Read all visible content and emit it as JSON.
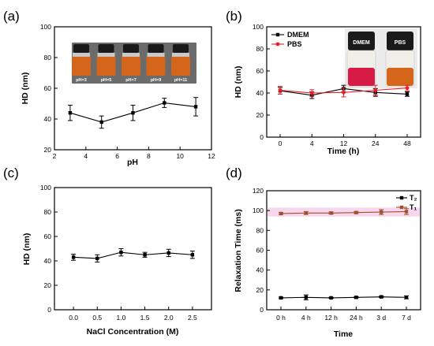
{
  "panels": {
    "a": "(a)",
    "b": "(b)",
    "c": "(c)",
    "d": "(d)"
  },
  "colors": {
    "black_series": "#000000",
    "pbs_series": "#e8202a",
    "t1_series": "#a0522d",
    "t1_band": "#f3c6e6",
    "vial_liquid": "#d4651a",
    "vial_cap": "#1a1a1a",
    "inset_bg": "#6b6b6b"
  },
  "chart_data": [
    {
      "id": "a",
      "type": "line",
      "xlabel": "pH",
      "ylabel": "HD (nm)",
      "xlim": [
        2,
        12
      ],
      "ylim": [
        20,
        100
      ],
      "xticks": [
        2,
        4,
        6,
        8,
        10,
        12
      ],
      "yticks": [
        20,
        40,
        60,
        80,
        100
      ],
      "series": [
        {
          "name": "",
          "x": [
            3,
            5,
            7,
            9,
            11
          ],
          "y": [
            44,
            38,
            44,
            50.5,
            48
          ],
          "err": [
            5,
            4,
            5,
            3,
            6
          ],
          "color": "#000000",
          "marker": "square"
        }
      ],
      "inset": {
        "vials": [
          "pH=3",
          "pH=5",
          "pH=7",
          "pH=9",
          "pH=11"
        ]
      }
    },
    {
      "id": "b",
      "type": "line",
      "xlabel": "Time (h)",
      "ylabel": "HD (nm)",
      "ylim": [
        0,
        100
      ],
      "categories": [
        "0",
        "4",
        "12",
        "24",
        "48"
      ],
      "yticks": [
        0,
        20,
        40,
        60,
        80,
        100
      ],
      "legend_position": "top-left",
      "series": [
        {
          "name": "DMEM",
          "y": [
            42,
            38,
            44,
            40.5,
            39
          ],
          "err": [
            3,
            3,
            3,
            3.5,
            2
          ],
          "color": "#000000",
          "marker": "square"
        },
        {
          "name": "PBS",
          "y": [
            42.5,
            40,
            40.5,
            42.5,
            44.5
          ],
          "err": [
            3.5,
            3,
            4,
            4.5,
            2.5
          ],
          "color": "#e8202a",
          "marker": "circle"
        }
      ],
      "inset": {
        "vials": [
          "DMEM",
          "PBS"
        ]
      }
    },
    {
      "id": "c",
      "type": "line",
      "xlabel": "NaCl Concentration (M)",
      "ylabel": "HD (nm)",
      "xlim": [
        -0.4,
        2.9
      ],
      "ylim": [
        0,
        100
      ],
      "xticks": [
        0.0,
        0.5,
        1.0,
        1.5,
        2.0,
        2.5
      ],
      "xtick_labels": [
        "0.0",
        "0.5",
        "1.0",
        "1.5",
        "2.0",
        "2.5"
      ],
      "yticks": [
        0,
        20,
        40,
        60,
        80,
        100
      ],
      "series": [
        {
          "name": "",
          "x": [
            0.0,
            0.5,
            1.0,
            1.5,
            2.0,
            2.5
          ],
          "y": [
            43,
            42,
            47,
            45,
            46.5,
            45
          ],
          "err": [
            2.5,
            3,
            3,
            2,
            3,
            3
          ],
          "color": "#000000",
          "marker": "square"
        }
      ]
    },
    {
      "id": "d",
      "type": "line",
      "xlabel": "Time",
      "ylabel": "Relaxation Time (ms)",
      "ylim": [
        0,
        120
      ],
      "categories": [
        "0 h",
        "4 h",
        "12 h",
        "24 h",
        "3 d",
        "7 d"
      ],
      "yticks": [
        0,
        20,
        40,
        60,
        80,
        100,
        120
      ],
      "legend_position": "top-right",
      "series": [
        {
          "name": "T₂",
          "y": [
            12,
            12.5,
            12,
            12.5,
            13,
            12.5
          ],
          "err": [
            0.8,
            2.5,
            0.6,
            0.7,
            0.8,
            1.5
          ],
          "color": "#000000",
          "marker": "square"
        },
        {
          "name": "T₁",
          "y": [
            97,
            97.5,
            97.5,
            98,
            98.5,
            99
          ],
          "err": [
            1,
            1.5,
            1,
            1,
            2.5,
            3
          ],
          "color": "#a0522d",
          "marker": "square"
        }
      ]
    }
  ]
}
